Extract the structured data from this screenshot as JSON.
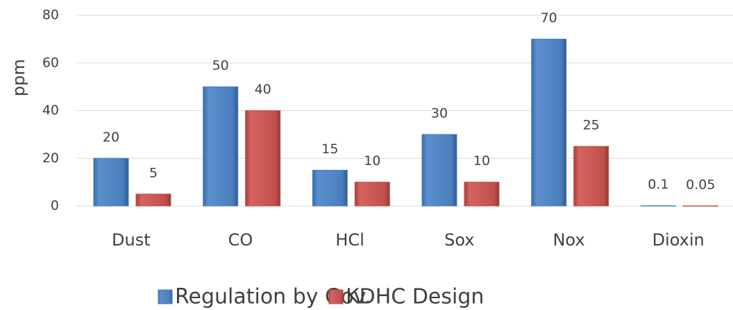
{
  "chart_data": {
    "type": "bar",
    "y_label": "ppm",
    "categories": [
      "Dust",
      "CO",
      "HCl",
      "Sox",
      "Nox",
      "Dioxin"
    ],
    "series": [
      {
        "name": "Regulation by Gov.",
        "color": "#4a7ebb",
        "values": [
          20,
          50,
          15,
          30,
          70,
          0.1
        ]
      },
      {
        "name": "KDHC Design",
        "color": "#c0504d",
        "values": [
          5,
          40,
          10,
          10,
          25,
          0.05
        ]
      }
    ],
    "ylim": [
      0,
      80
    ],
    "yticks": [
      0,
      20,
      40,
      60,
      80
    ],
    "grid": true
  }
}
